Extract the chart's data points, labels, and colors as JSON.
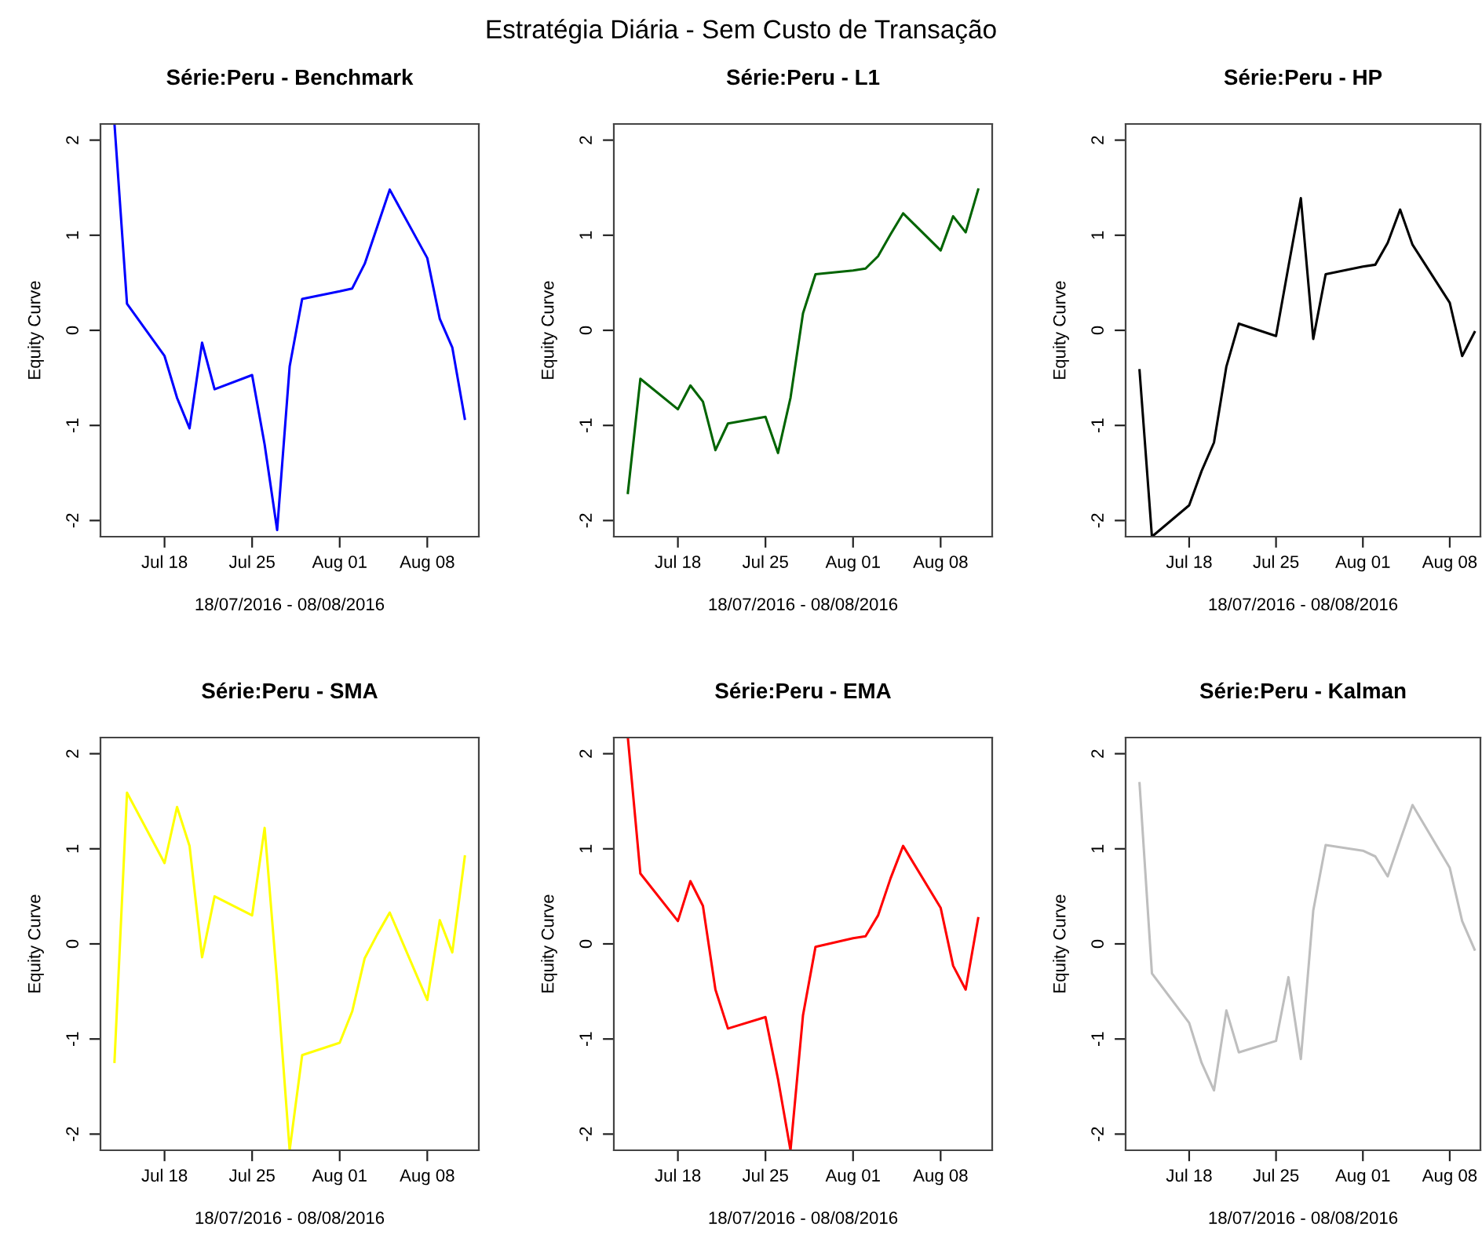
{
  "chart_data": [
    {
      "type": "line",
      "title": "Série:Peru - Benchmark",
      "xlabel": "18/07/2016 - 08/08/2016",
      "ylabel": "Equity Curve",
      "annotations": [
        "Estratégia Diária - Sem Custo de Transação"
      ],
      "x": [
        "2016-07-14",
        "2016-07-15",
        "2016-07-18",
        "2016-07-19",
        "2016-07-20",
        "2016-07-21",
        "2016-07-22",
        "2016-07-25",
        "2016-07-26",
        "2016-07-27",
        "2016-07-28",
        "2016-07-29",
        "2016-08-01",
        "2016-08-02",
        "2016-08-03",
        "2016-08-04",
        "2016-08-05",
        "2016-08-08",
        "2016-08-09",
        "2016-08-10",
        "2016-08-11"
      ],
      "series": [
        {
          "color": "#0000ff",
          "values": [
            2.17,
            0.28,
            -0.27,
            -0.71,
            -1.03,
            -0.13,
            -0.62,
            -0.47,
            -1.2,
            -2.1,
            -0.38,
            0.33,
            0.41,
            0.44,
            0.7,
            1.09,
            1.48,
            0.76,
            0.12,
            -0.18,
            -0.93
          ]
        }
      ],
      "xlim": [
        "2016-07-12T21:07",
        "2016-08-12T02:53"
      ],
      "xticks": [
        {
          "value": "2016-07-18",
          "label": "Jul 18"
        },
        {
          "value": "2016-07-25",
          "label": "Jul 25"
        },
        {
          "value": "2016-08-01",
          "label": "Aug 01"
        },
        {
          "value": "2016-08-08",
          "label": "Aug 08"
        }
      ],
      "ylim": [
        -2.17,
        2.17
      ],
      "yticks": [
        -2,
        -1,
        0,
        1,
        2
      ]
    },
    {
      "type": "line",
      "title": "Série:Peru - L1",
      "xlabel": "18/07/2016 - 08/08/2016",
      "ylabel": "Equity Curve",
      "x": [
        "2016-07-14",
        "2016-07-15",
        "2016-07-18",
        "2016-07-19",
        "2016-07-20",
        "2016-07-21",
        "2016-07-22",
        "2016-07-25",
        "2016-07-26",
        "2016-07-27",
        "2016-07-28",
        "2016-07-29",
        "2016-08-01",
        "2016-08-02",
        "2016-08-03",
        "2016-08-04",
        "2016-08-05",
        "2016-08-08",
        "2016-08-09",
        "2016-08-10",
        "2016-08-11"
      ],
      "series": [
        {
          "color": "#006400",
          "values": [
            -1.71,
            -0.51,
            -0.83,
            -0.58,
            -0.75,
            -1.26,
            -0.98,
            -0.91,
            -1.29,
            -0.71,
            0.18,
            0.59,
            0.63,
            0.65,
            0.78,
            1.01,
            1.23,
            0.84,
            1.2,
            1.03,
            1.48
          ]
        }
      ],
      "xlim": [
        "2016-07-12T21:07",
        "2016-08-12T02:53"
      ],
      "xticks": [
        {
          "value": "2016-07-18",
          "label": "Jul 18"
        },
        {
          "value": "2016-07-25",
          "label": "Jul 25"
        },
        {
          "value": "2016-08-01",
          "label": "Aug 01"
        },
        {
          "value": "2016-08-08",
          "label": "Aug 08"
        }
      ],
      "ylim": [
        -2.17,
        2.17
      ],
      "yticks": [
        -2,
        -1,
        0,
        1,
        2
      ]
    },
    {
      "type": "line",
      "title": "Série:Peru - HP",
      "xlabel": "18/07/2016 - 08/08/2016",
      "ylabel": "Equity Curve",
      "x": [
        "2016-07-14",
        "2016-07-15",
        "2016-07-18",
        "2016-07-19",
        "2016-07-20",
        "2016-07-21",
        "2016-07-22",
        "2016-07-25",
        "2016-07-26",
        "2016-07-27",
        "2016-07-28",
        "2016-07-29",
        "2016-08-01",
        "2016-08-02",
        "2016-08-03",
        "2016-08-04",
        "2016-08-05",
        "2016-08-08",
        "2016-08-09",
        "2016-08-10"
      ],
      "series": [
        {
          "color": "#000000",
          "values": [
            -0.42,
            -2.17,
            -1.84,
            -1.48,
            -1.18,
            -0.38,
            0.07,
            -0.06,
            0.67,
            1.39,
            -0.09,
            0.59,
            0.67,
            0.69,
            0.92,
            1.27,
            0.9,
            0.29,
            -0.27,
            -0.02
          ]
        }
      ],
      "xlim": [
        "2016-07-12T21:07",
        "2016-08-10T11:20"
      ],
      "xticks": [
        {
          "value": "2016-07-18",
          "label": "Jul 18"
        },
        {
          "value": "2016-07-25",
          "label": "Jul 25"
        },
        {
          "value": "2016-08-01",
          "label": "Aug 01"
        },
        {
          "value": "2016-08-08",
          "label": "Aug 08"
        }
      ],
      "ylim": [
        -2.17,
        2.17
      ],
      "yticks": [
        -2,
        -1,
        0,
        1,
        2
      ]
    },
    {
      "type": "line",
      "title": "Série:Peru - SMA",
      "xlabel": "18/07/2016 - 08/08/2016",
      "ylabel": "Equity Curve",
      "x": [
        "2016-07-14",
        "2016-07-15",
        "2016-07-18",
        "2016-07-19",
        "2016-07-20",
        "2016-07-21",
        "2016-07-22",
        "2016-07-25",
        "2016-07-26",
        "2016-07-27",
        "2016-07-28",
        "2016-07-29",
        "2016-08-01",
        "2016-08-02",
        "2016-08-03",
        "2016-08-04",
        "2016-08-05",
        "2016-08-08",
        "2016-08-09",
        "2016-08-10",
        "2016-08-11"
      ],
      "series": [
        {
          "color": "#ffff00",
          "values": [
            -1.24,
            1.59,
            0.85,
            1.44,
            1.03,
            -0.14,
            0.5,
            0.3,
            1.22,
            -0.4,
            -2.17,
            -1.17,
            -1.04,
            -0.71,
            -0.15,
            0.1,
            0.33,
            -0.59,
            0.25,
            -0.09,
            0.92
          ]
        }
      ],
      "xlim": [
        "2016-07-12T21:07",
        "2016-08-12T02:53"
      ],
      "xticks": [
        {
          "value": "2016-07-18",
          "label": "Jul 18"
        },
        {
          "value": "2016-07-25",
          "label": "Jul 25"
        },
        {
          "value": "2016-08-01",
          "label": "Aug 01"
        },
        {
          "value": "2016-08-08",
          "label": "Aug 08"
        }
      ],
      "ylim": [
        -2.17,
        2.17
      ],
      "yticks": [
        -2,
        -1,
        0,
        1,
        2
      ]
    },
    {
      "type": "line",
      "title": "Série:Peru - EMA",
      "xlabel": "18/07/2016 - 08/08/2016",
      "ylabel": "Equity Curve",
      "x": [
        "2016-07-14",
        "2016-07-15",
        "2016-07-18",
        "2016-07-19",
        "2016-07-20",
        "2016-07-21",
        "2016-07-22",
        "2016-07-25",
        "2016-07-26",
        "2016-07-27",
        "2016-07-28",
        "2016-07-29",
        "2016-08-01",
        "2016-08-02",
        "2016-08-03",
        "2016-08-04",
        "2016-08-05",
        "2016-08-08",
        "2016-08-09",
        "2016-08-10",
        "2016-08-11"
      ],
      "series": [
        {
          "color": "#ff0000",
          "values": [
            2.17,
            0.74,
            0.24,
            0.66,
            0.4,
            -0.48,
            -0.89,
            -0.77,
            -1.42,
            -2.17,
            -0.75,
            -0.03,
            0.06,
            0.08,
            0.3,
            0.69,
            1.03,
            0.38,
            -0.23,
            -0.48,
            0.27
          ]
        }
      ],
      "xlim": [
        "2016-07-12T21:07",
        "2016-08-12T02:53"
      ],
      "xticks": [
        {
          "value": "2016-07-18",
          "label": "Jul 18"
        },
        {
          "value": "2016-07-25",
          "label": "Jul 25"
        },
        {
          "value": "2016-08-01",
          "label": "Aug 01"
        },
        {
          "value": "2016-08-08",
          "label": "Aug 08"
        }
      ],
      "ylim": [
        -2.17,
        2.17
      ],
      "yticks": [
        -2,
        -1,
        0,
        1,
        2
      ]
    },
    {
      "type": "line",
      "title": "Série:Peru - Kalman",
      "xlabel": "18/07/2016 - 08/08/2016",
      "ylabel": "Equity Curve",
      "x": [
        "2016-07-14",
        "2016-07-15",
        "2016-07-18",
        "2016-07-19",
        "2016-07-20",
        "2016-07-21",
        "2016-07-22",
        "2016-07-25",
        "2016-07-26",
        "2016-07-27",
        "2016-07-28",
        "2016-07-29",
        "2016-08-01",
        "2016-08-02",
        "2016-08-03",
        "2016-08-04",
        "2016-08-05",
        "2016-08-08",
        "2016-08-09",
        "2016-08-10"
      ],
      "series": [
        {
          "color": "#bebebe",
          "values": [
            1.69,
            -0.31,
            -0.83,
            -1.25,
            -1.54,
            -0.7,
            -1.14,
            -1.02,
            -0.35,
            -1.21,
            0.35,
            1.04,
            0.98,
            0.92,
            0.71,
            1.09,
            1.46,
            0.8,
            0.24,
            -0.06
          ]
        }
      ],
      "xlim": [
        "2016-07-12T21:07",
        "2016-08-10T11:20"
      ],
      "xticks": [
        {
          "value": "2016-07-18",
          "label": "Jul 18"
        },
        {
          "value": "2016-07-25",
          "label": "Jul 25"
        },
        {
          "value": "2016-08-01",
          "label": "Aug 01"
        },
        {
          "value": "2016-08-08",
          "label": "Aug 08"
        }
      ],
      "ylim": [
        -2.17,
        2.17
      ],
      "yticks": [
        -2,
        -1,
        0,
        1,
        2
      ]
    }
  ]
}
